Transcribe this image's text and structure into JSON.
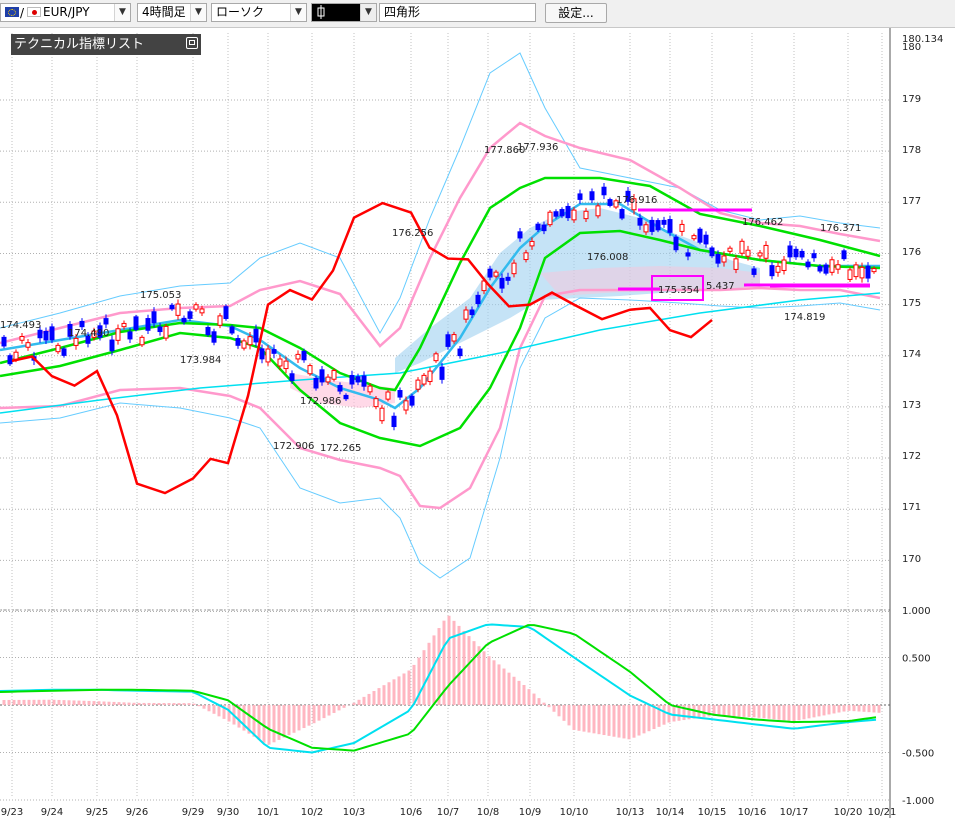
{
  "toolbar": {
    "symbol_separator": "/",
    "symbol": "EUR/JPY",
    "timeframe": "4時間足",
    "chart_type": "ローソク",
    "draw_tool_icon": "candle-icon",
    "shape_field": "四角形",
    "settings_label": "設定..."
  },
  "indicator_panel": {
    "label": "テクニカル指標リスト"
  },
  "colors": {
    "price_line": "#ff0000",
    "ma_green": "#00e000",
    "ma_blue": "#33bbee",
    "ma_long": "#00e0f0",
    "bollinger_inner": "#ff99cc",
    "bollinger_outer": "#66ccff",
    "cloud_fill": "#9fd0f0",
    "marker": "#ff00ff",
    "candle_up": "#ff0000",
    "candle_down": "#0000ff",
    "macd_hist": "#ffb6c1"
  },
  "main_axis": {
    "labels": [
      "180.134",
      "180",
      "179",
      "178",
      "177",
      "176",
      "175",
      "174",
      "173",
      "172",
      "171",
      "170"
    ]
  },
  "osc_axis": {
    "labels": [
      "1.000",
      "0.500",
      "-0.500",
      "-1.000"
    ]
  },
  "x_axis": {
    "labels": [
      "9/23",
      "9/24",
      "9/25",
      "9/26",
      "9/29",
      "9/30",
      "10/1",
      "10/2",
      "10/3",
      "10/6",
      "10/7",
      "10/8",
      "10/9",
      "10/10",
      "10/13",
      "10/14",
      "10/15",
      "10/16",
      "10/17",
      "10/20",
      "10/21"
    ]
  },
  "price_annotations": [
    "174.493",
    "175.053",
    "174.490",
    "173.984",
    "172.986",
    "172.906",
    "172.265",
    "176.256",
    "177.860",
    "177.936",
    "176.916",
    "176.008",
    "175.354",
    "5.437",
    "176.462",
    "176.371",
    "174.819"
  ],
  "chart_data": {
    "type": "line",
    "title": "EUR/JPY",
    "ylim": [
      169.6,
      180.3
    ],
    "x": [
      "9/23",
      "9/24",
      "9/25",
      "9/26",
      "9/29",
      "9/30",
      "10/1",
      "10/2",
      "10/3",
      "10/6",
      "10/7",
      "10/8",
      "10/9",
      "10/10",
      "10/13",
      "10/14",
      "10/15",
      "10/16",
      "10/17",
      "10/20",
      "10/21"
    ],
    "series": [
      {
        "values": [
          174.9,
          174.6,
          174.7,
          172.5,
          172.6,
          172.9,
          176.0,
          176.1,
          177.7,
          177.8,
          176.9,
          176.4,
          176.0,
          176.0,
          175.9,
          175.5,
          175.7,
          null,
          null,
          null,
          null
        ]
      }
    ],
    "oscillator": {
      "ylim": [
        -1.0,
        1.0
      ],
      "series": [
        {
          "values": [
            0.15,
            0.16,
            0.16,
            0.15,
            0.14,
            -0.05,
            -0.45,
            -0.5,
            -0.4,
            -0.05,
            0.7,
            0.85,
            0.82,
            0.5,
            0.1,
            -0.1,
            -0.15,
            -0.2,
            -0.25,
            -0.18,
            -0.15
          ]
        },
        {
          "values": [
            0.14,
            0.15,
            0.16,
            0.16,
            0.15,
            0.05,
            -0.25,
            -0.45,
            -0.48,
            -0.3,
            0.2,
            0.65,
            0.85,
            0.75,
            0.35,
            0.0,
            -0.1,
            -0.15,
            -0.18,
            -0.17,
            -0.12
          ]
        }
      ]
    }
  }
}
